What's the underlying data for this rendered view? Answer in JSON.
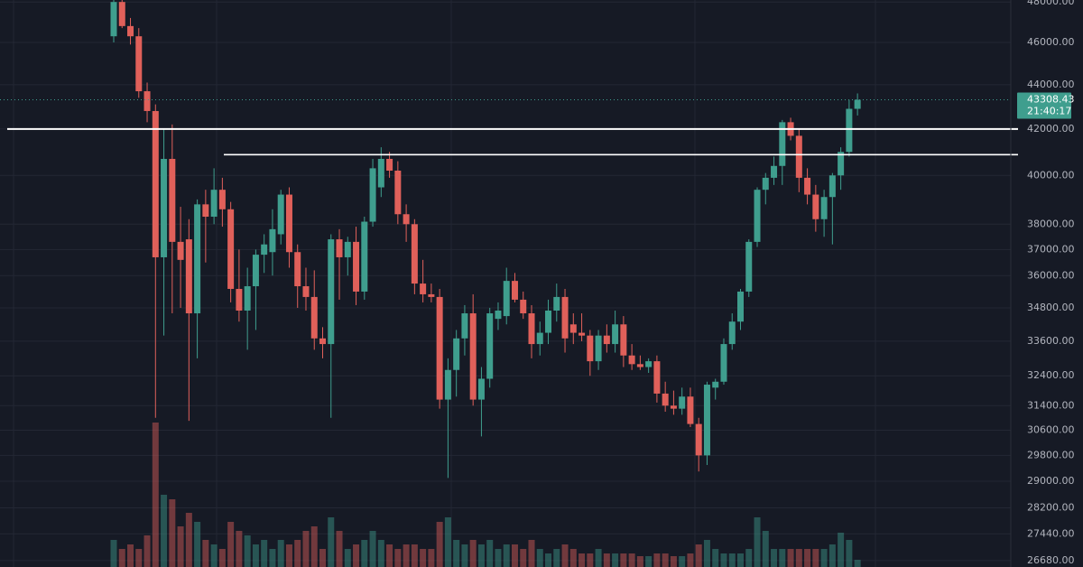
{
  "chart_data": {
    "type": "candlestick",
    "log_scale": true,
    "grid": true,
    "up_color": "#3f9e8e",
    "down_color": "#e0605a",
    "ylim": [
      26500,
      48100
    ],
    "yticks": [
      {
        "value": 26680,
        "label": "26680.00"
      },
      {
        "value": 27440,
        "label": "27440.00"
      },
      {
        "value": 28200,
        "label": "28200.00"
      },
      {
        "value": 29000,
        "label": "29000.00"
      },
      {
        "value": 29800,
        "label": "29800.00"
      },
      {
        "value": 30600,
        "label": "30600.00"
      },
      {
        "value": 31400,
        "label": "31400.00"
      },
      {
        "value": 32400,
        "label": "32400.00"
      },
      {
        "value": 33600,
        "label": "33600.00"
      },
      {
        "value": 34800,
        "label": "34800.00"
      },
      {
        "value": 36000,
        "label": "36000.00"
      },
      {
        "value": 37000,
        "label": "37000.00"
      },
      {
        "value": 38000,
        "label": "38000.00"
      },
      {
        "value": 40000,
        "label": "40000.00"
      },
      {
        "value": 42000,
        "label": "42000.00"
      },
      {
        "value": 44000,
        "label": "44000.00"
      },
      {
        "value": 46000,
        "label": "46000.00"
      },
      {
        "value": 48000,
        "label": "48000.00"
      }
    ],
    "last_price": {
      "value": 43308.43,
      "label": "43308.43"
    },
    "countdown": "21:40:17",
    "levels": [
      42000,
      40880
    ],
    "open": [
      46300,
      48000,
      46800,
      46300,
      43700,
      42800,
      36700,
      40700,
      37300,
      37400,
      34600,
      38800,
      38300,
      39400,
      38600,
      35500,
      34700,
      35600,
      36800,
      36900,
      37600,
      39200,
      36900,
      35600,
      35200,
      33700,
      33500,
      37400,
      36700,
      37300,
      35400,
      38100,
      39500,
      40700,
      40200,
      38400,
      38000,
      35700,
      35300,
      35200,
      31600,
      32600,
      33700,
      34600,
      31600,
      32300,
      34400,
      34500,
      35800,
      35100,
      34600,
      33500,
      33900,
      34700,
      35200,
      34200,
      33900,
      33800,
      32900,
      33800,
      33500,
      34200,
      33100,
      32800,
      32700,
      32900,
      31800,
      31400,
      31300,
      31700,
      30800,
      29800,
      32000,
      32200,
      33500,
      34300,
      35400,
      37300,
      39400,
      39900,
      40400,
      42300,
      41700,
      39900,
      39200,
      38200,
      39100,
      40000,
      41000,
      42900
    ],
    "high": [
      48100,
      48100,
      47200,
      46700,
      44100,
      43100,
      42000,
      42200,
      38700,
      38200,
      39000,
      39400,
      40300,
      39900,
      38900,
      37000,
      36300,
      37000,
      37600,
      38600,
      39400,
      39500,
      37200,
      36300,
      36200,
      34100,
      37600,
      37800,
      37500,
      37900,
      38300,
      40700,
      41200,
      41000,
      40600,
      38800,
      38200,
      36600,
      35700,
      35500,
      33000,
      34000,
      34900,
      35300,
      32700,
      34800,
      35000,
      36300,
      36100,
      35400,
      34900,
      34300,
      35100,
      35700,
      35500,
      34600,
      34600,
      34000,
      34000,
      34200,
      34700,
      34500,
      33500,
      33100,
      33000,
      33100,
      32200,
      31900,
      32000,
      32000,
      31000,
      32200,
      32300,
      33700,
      34600,
      35500,
      37400,
      39500,
      40100,
      40800,
      42400,
      42500,
      42000,
      40300,
      39600,
      39400,
      40100,
      41200,
      43300,
      43600
    ],
    "low": [
      46000,
      46700,
      45900,
      43400,
      42300,
      31000,
      33800,
      34600,
      34800,
      30900,
      33000,
      36500,
      38000,
      37900,
      35000,
      34300,
      33300,
      34000,
      36100,
      36000,
      37200,
      36300,
      34800,
      34700,
      33300,
      33000,
      31000,
      35100,
      36000,
      34900,
      35100,
      37900,
      39100,
      39900,
      38000,
      37300,
      35300,
      35000,
      35000,
      31300,
      29100,
      31700,
      33100,
      31400,
      30400,
      32000,
      34000,
      34200,
      35000,
      34400,
      33000,
      33100,
      33500,
      34300,
      33200,
      33500,
      33600,
      32400,
      32600,
      33200,
      33200,
      32700,
      32600,
      32600,
      32500,
      31500,
      31200,
      31100,
      31100,
      30700,
      29300,
      29500,
      31600,
      32100,
      33300,
      34000,
      35200,
      37100,
      38800,
      39600,
      39600,
      41500,
      39300,
      38800,
      37700,
      37500,
      37200,
      39400,
      40800,
      42600
    ],
    "close": [
      48000,
      46800,
      46300,
      43700,
      42800,
      36700,
      40700,
      37300,
      36600,
      34600,
      38800,
      38300,
      39400,
      38600,
      35500,
      34700,
      35600,
      36800,
      37200,
      37800,
      39200,
      36900,
      35600,
      35200,
      33700,
      33500,
      37400,
      36700,
      37300,
      35400,
      38100,
      40300,
      40700,
      40200,
      38400,
      38000,
      35700,
      35300,
      35200,
      31600,
      32600,
      33700,
      34600,
      31600,
      32300,
      34600,
      34700,
      35800,
      35100,
      34600,
      33500,
      33900,
      34700,
      35200,
      33700,
      33900,
      33800,
      32900,
      33800,
      33500,
      34200,
      33100,
      32800,
      32700,
      32900,
      31800,
      31400,
      31300,
      31700,
      30800,
      29800,
      32100,
      32200,
      33500,
      34300,
      35400,
      37300,
      39400,
      39900,
      40400,
      42300,
      41700,
      39900,
      39200,
      38200,
      39100,
      40000,
      41000,
      42900,
      43308.43
    ],
    "vlim": [
      0,
      180
    ],
    "volume": [
      30,
      20,
      25,
      20,
      35,
      160,
      80,
      75,
      45,
      60,
      50,
      30,
      25,
      20,
      50,
      40,
      35,
      25,
      30,
      20,
      30,
      25,
      30,
      40,
      45,
      20,
      55,
      40,
      20,
      25,
      30,
      40,
      30,
      25,
      20,
      25,
      25,
      20,
      20,
      50,
      55,
      30,
      25,
      30,
      25,
      30,
      20,
      25,
      25,
      20,
      30,
      20,
      15,
      20,
      25,
      20,
      15,
      15,
      20,
      15,
      15,
      15,
      15,
      12,
      12,
      15,
      15,
      12,
      12,
      15,
      25,
      30,
      20,
      15,
      15,
      15,
      20,
      55,
      40,
      20,
      20,
      20,
      20,
      20,
      20,
      20,
      25,
      38,
      30,
      8
    ]
  }
}
